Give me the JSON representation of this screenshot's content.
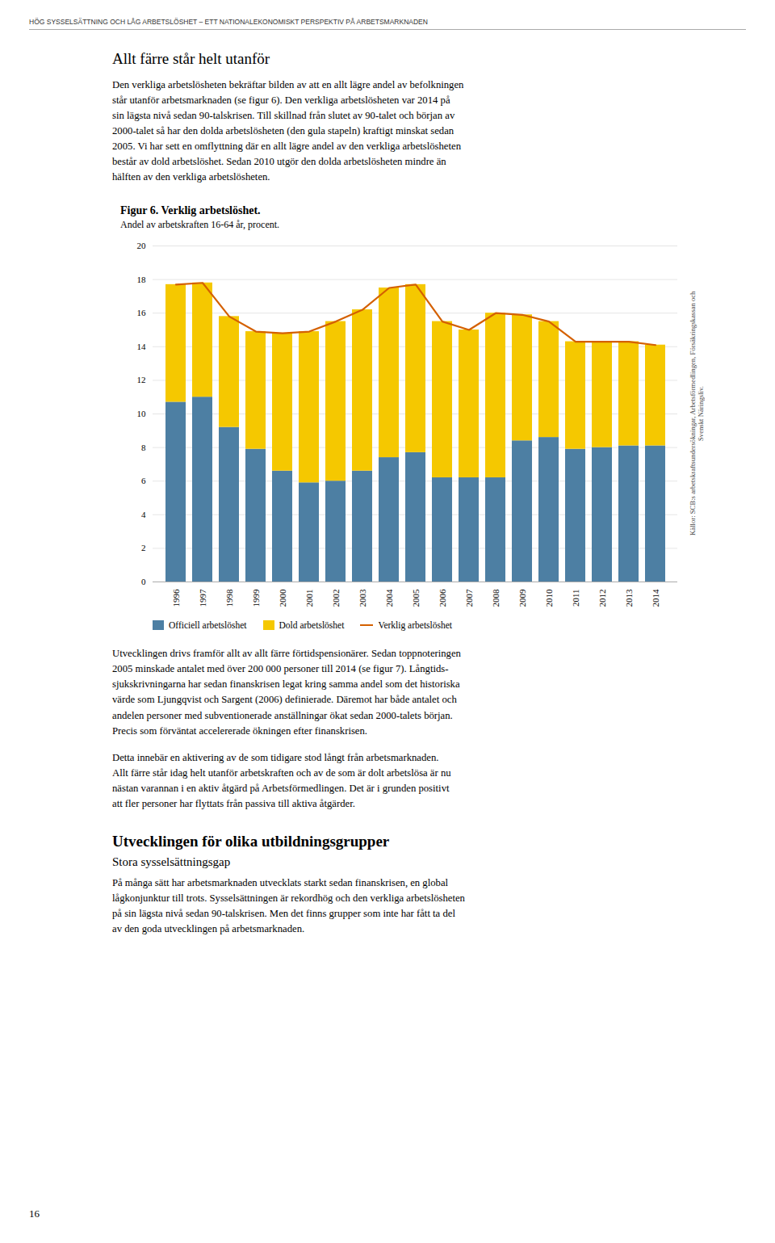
{
  "header": "HÖG SYSSELSÄTTNING OCH LÅG ARBETSLÖSHET – ETT NATIONALEKONOMISKT PERSPEKTIV PÅ ARBETSMARKNADEN",
  "section_title": "Allt färre står helt utanför",
  "para1": "Den verkliga arbetslösheten bekräftar bilden av att en allt lägre andel av befolkningen\nstår utanför arbetsmarknaden (se figur 6). Den verkliga arbetslösheten var 2014 på\nsin lägsta nivå sedan 90-talskrisen. Till skillnad från slutet av 90-talet och början av\n2000-talet så har den dolda arbetslösheten (den gula stapeln) kraftigt minskat sedan\n2005. Vi har sett en omflyttning där en allt lägre andel av den verkliga arbetslösheten\nbestår av dold arbetslöshet. Sedan 2010 utgör den dolda arbetslösheten mindre än\nhälften av den verkliga arbetslösheten.",
  "para2": "Utvecklingen drivs framför allt av allt färre förtidspensionärer. Sedan toppnoteringen\n2005 minskade antalet med över 200 000 personer till 2014 (se figur 7). Långtids-\nsjukskrivningarna har sedan finanskrisen legat kring samma andel som det historiska\nvärde som Ljungqvist och Sargent (2006) definierade. Däremot har både antalet och\nandelen personer med subventionerade anställningar ökat sedan 2000-talets början.\nPrecis som förväntat accelererade ökningen efter finanskrisen.",
  "para3": "Detta innebär en aktivering av de som tidigare stod långt från arbetsmarknaden.\nAllt färre står idag helt utanför arbetskraften och av de som är dolt arbetslösa är nu\nnästan varannan i en aktiv åtgärd på Arbetsförmedlingen. Det är i grunden positivt\natt fler personer har flyttats från passiva till aktiva åtgärder.",
  "section2_title": "Utvecklingen för olika utbildningsgrupper",
  "section2_sub": "Stora sysselsättningsgap",
  "para4": "På många sätt har arbetsmarknaden utvecklats starkt sedan finanskrisen, en global\nlågkonjunktur till trots. Sysselsättningen är rekordhög och den verkliga arbetslösheten\npå sin lägsta nivå sedan 90-talskrisen. Men det finns grupper som inte har fått ta del\nav den goda utvecklingen på arbetsmarknaden.",
  "page_number": "16",
  "chart_data": {
    "type": "bar",
    "title": "Figur 6. Verklig arbetslöshet.",
    "subtitle": "Andel av arbetskraften 16-64 år, procent.",
    "source": "Källor: SCB:s arbetskraftsundersökningar, Arbetsförmedlingen, Försäkringskassan och\nSvenskt Näringsliv.",
    "categories": [
      "1996",
      "1997",
      "1998",
      "1999",
      "2000",
      "2001",
      "2002",
      "2003",
      "2004",
      "2005",
      "2006",
      "2007",
      "2008",
      "2009",
      "2010",
      "2011",
      "2012",
      "2013",
      "2014"
    ],
    "series": [
      {
        "name": "Officiell arbetslöshet",
        "type": "bar",
        "color": "#4d7fa3",
        "values": [
          10.7,
          11.0,
          9.2,
          7.9,
          6.6,
          5.9,
          6.0,
          6.6,
          7.4,
          7.7,
          6.2,
          6.2,
          6.2,
          8.4,
          8.6,
          7.9,
          8.0,
          8.1,
          8.1
        ]
      },
      {
        "name": "Dold arbetslöshet",
        "type": "bar",
        "color": "#f5c800",
        "values": [
          7.0,
          6.8,
          6.6,
          7.0,
          8.2,
          9.0,
          9.5,
          9.6,
          10.1,
          10.0,
          9.3,
          8.8,
          9.8,
          7.5,
          6.9,
          6.4,
          6.3,
          6.2,
          6.0
        ]
      },
      {
        "name": "Verklig arbetslöshet",
        "type": "line",
        "color": "#d46000",
        "values": [
          17.7,
          17.8,
          15.8,
          14.9,
          14.8,
          14.9,
          15.5,
          16.2,
          17.5,
          17.7,
          15.5,
          15.0,
          16.0,
          15.9,
          15.5,
          14.3,
          14.3,
          14.3,
          14.1
        ]
      }
    ],
    "stacked": true,
    "ylim": [
      0,
      20
    ],
    "yticks": [
      0,
      2,
      4,
      6,
      8,
      10,
      12,
      14,
      16,
      18,
      20
    ],
    "grid": true,
    "legend": "bottom"
  }
}
